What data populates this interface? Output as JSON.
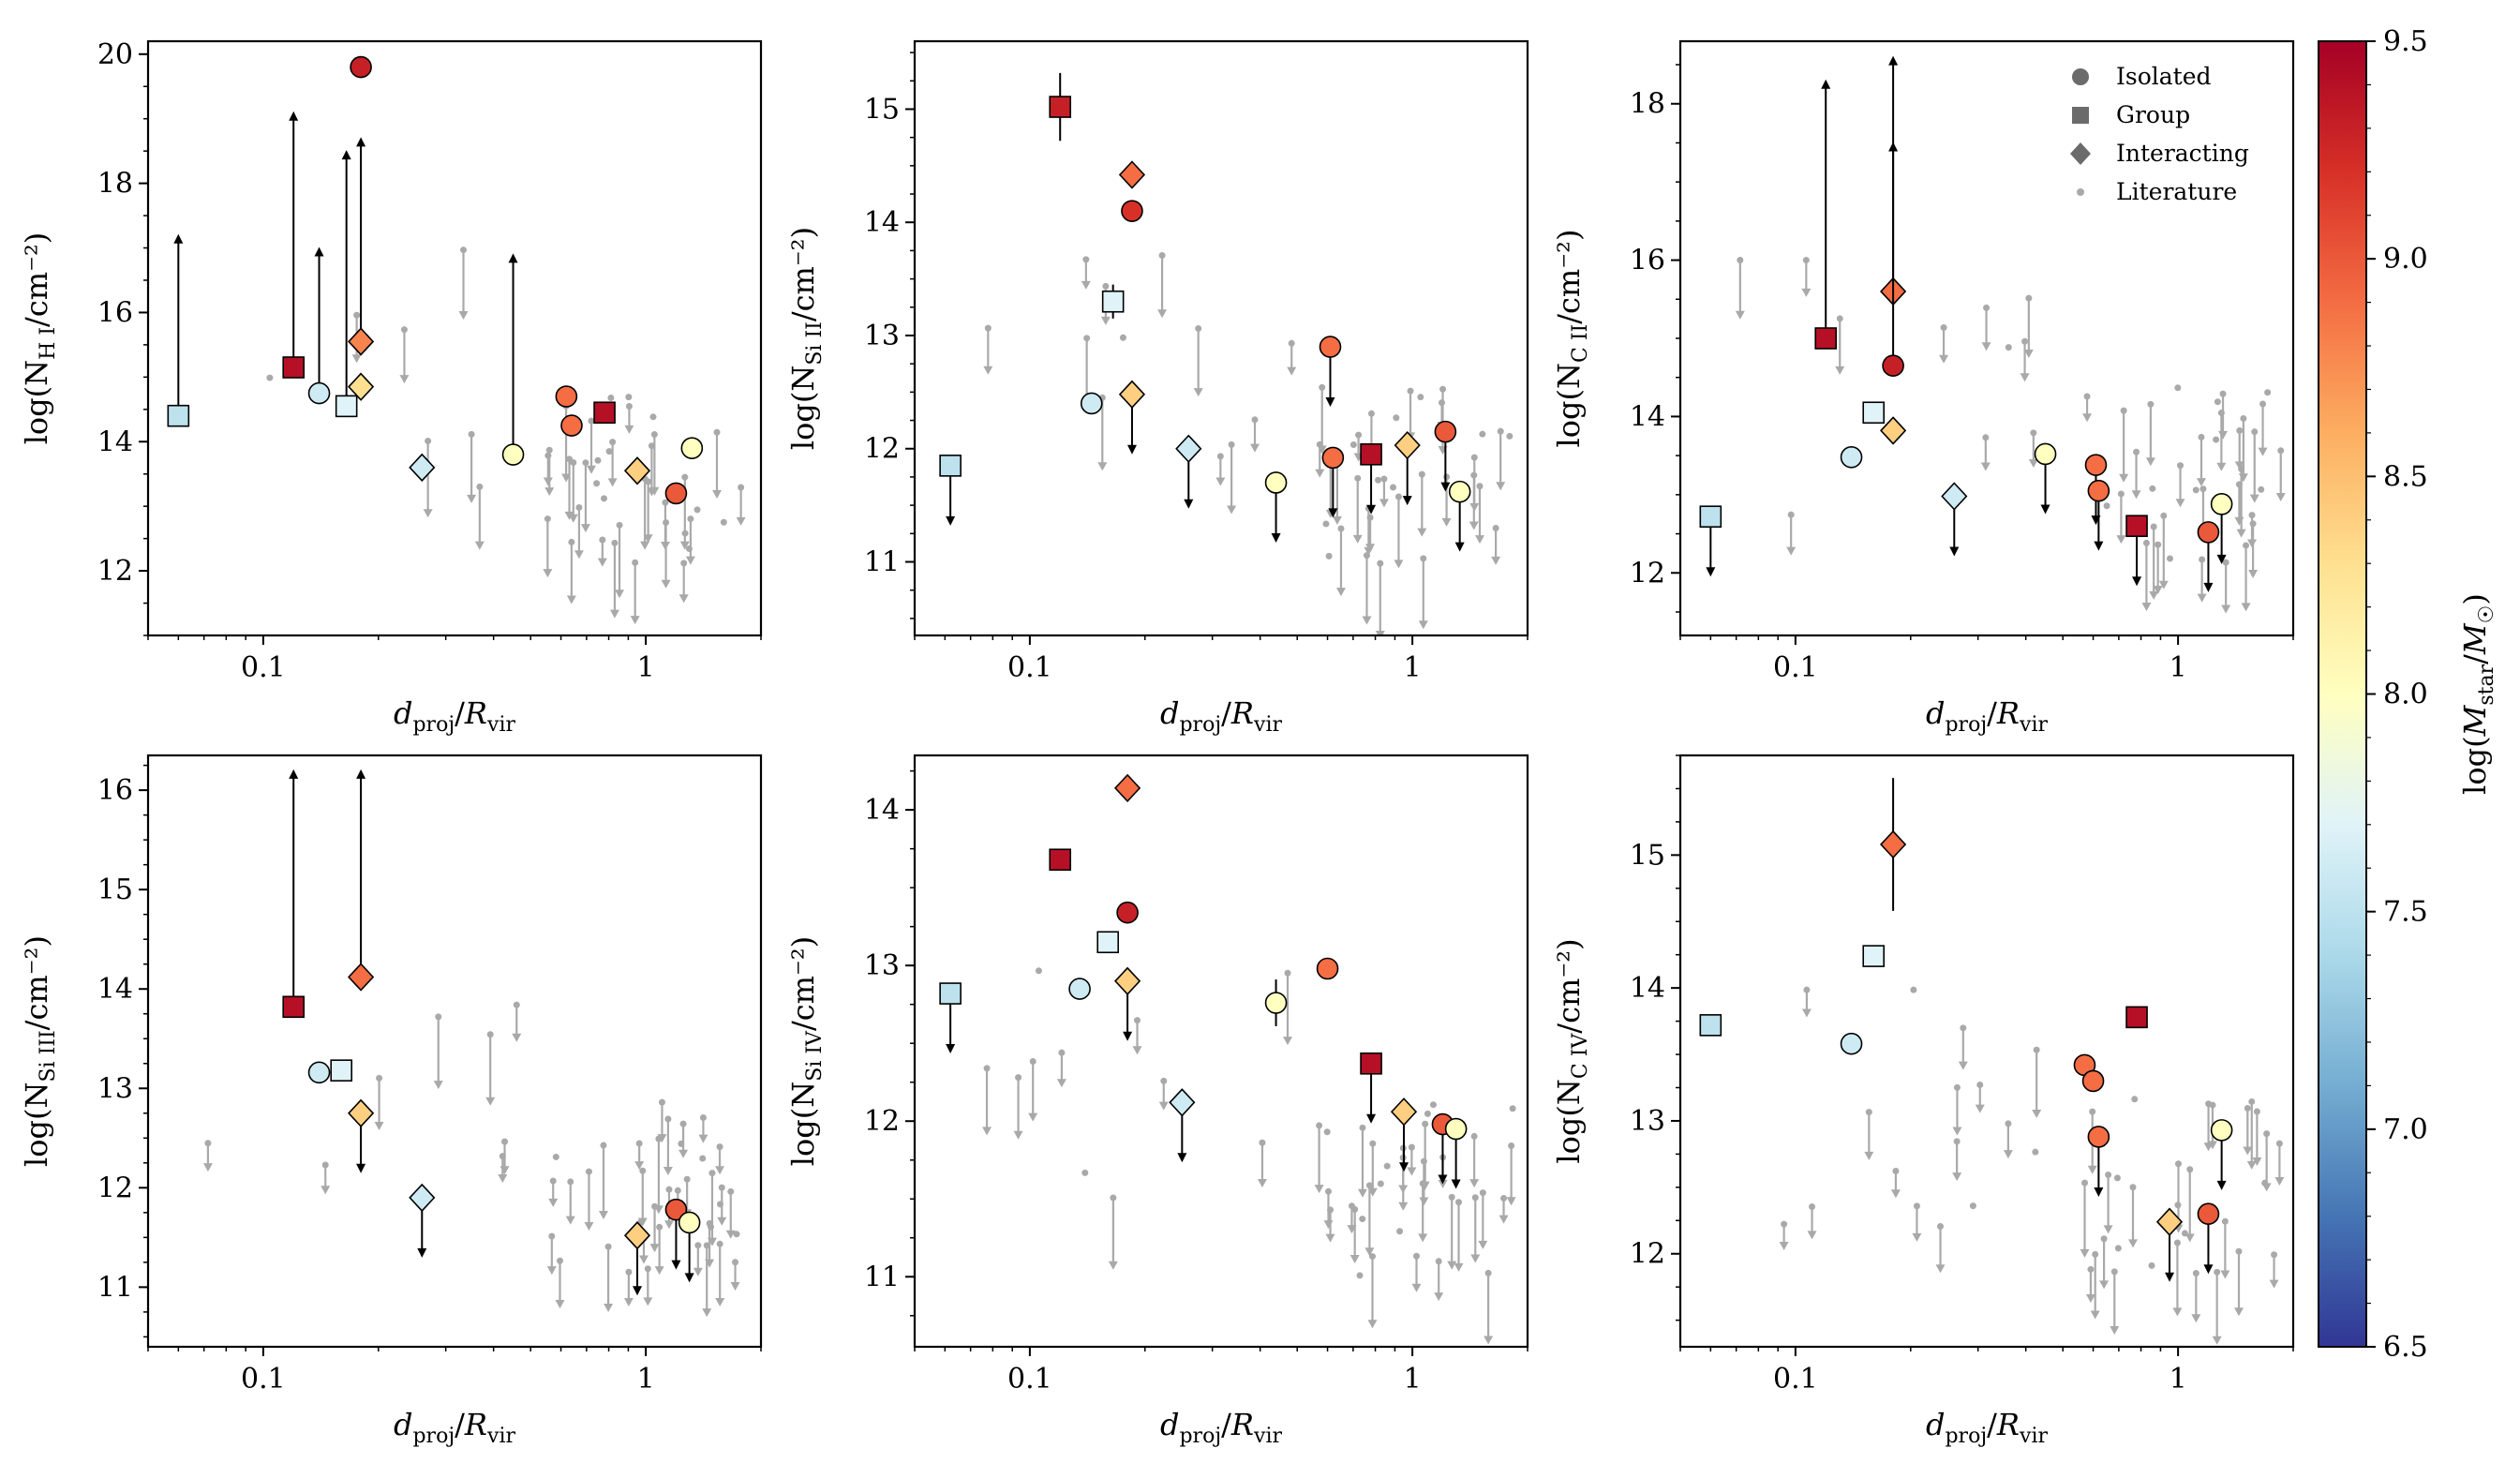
{
  "chart_data": {
    "type": "scatter",
    "xlabel": "d_proj/R_vir",
    "legend": {
      "placement": "top-right",
      "entries": [
        {
          "label": "Isolated",
          "marker": "circle-icon"
        },
        {
          "label": "Group",
          "marker": "square-icon"
        },
        {
          "label": "Interacting",
          "marker": "diamond-icon"
        },
        {
          "label": "Literature",
          "marker": "small-dot-icon"
        }
      ]
    },
    "colorbar": {
      "label": "log(M_star/M_☉)",
      "range": [
        6.5,
        9.5
      ],
      "ticks": [
        "6.5",
        "7.0",
        "7.5",
        "8.0",
        "8.5",
        "9.0",
        "9.5"
      ],
      "colormap": [
        "#313695",
        "#4575b4",
        "#74add1",
        "#abd9e9",
        "#e0f3f8",
        "#ffffbf",
        "#fee090",
        "#fdae61",
        "#f46d43",
        "#d73027",
        "#a50026"
      ]
    },
    "panels": [
      {
        "ion": "HI",
        "ylabel_pre": "log(N",
        "ylabel_sub": "H I",
        "ylabel_post": "/cm⁻²)",
        "ylim": [
          11.0,
          20.2
        ],
        "yticks": [
          12,
          14,
          16,
          18,
          20
        ],
        "xlim": [
          0.05,
          2.0
        ],
        "points": [
          {
            "x": 0.06,
            "y": 14.4,
            "m": "s",
            "c": 7.5,
            "lim": "lower",
            "top": 17.2
          },
          {
            "x": 0.12,
            "y": 15.15,
            "m": "s",
            "c": 9.4,
            "lim": "lower",
            "top": 19.1
          },
          {
            "x": 0.14,
            "y": 14.75,
            "m": "o",
            "c": 7.6,
            "lim": "lower",
            "top": 17.0
          },
          {
            "x": 0.165,
            "y": 14.55,
            "m": "s",
            "c": 7.7,
            "lim": "lower",
            "top": 18.5
          },
          {
            "x": 0.18,
            "y": 19.8,
            "m": "o",
            "c": 9.3
          },
          {
            "x": 0.18,
            "y": 15.55,
            "m": "d",
            "c": 8.8,
            "lim": "lower",
            "top": 18.7
          },
          {
            "x": 0.18,
            "y": 14.85,
            "m": "d",
            "c": 8.3
          },
          {
            "x": 0.26,
            "y": 13.6,
            "m": "d",
            "c": 7.6
          },
          {
            "x": 0.45,
            "y": 13.8,
            "m": "o",
            "c": 8.0,
            "lim": "lower",
            "top": 16.9
          },
          {
            "x": 0.62,
            "y": 14.7,
            "m": "o",
            "c": 8.9
          },
          {
            "x": 0.64,
            "y": 14.25,
            "m": "o",
            "c": 8.9
          },
          {
            "x": 0.78,
            "y": 14.45,
            "m": "s",
            "c": 9.4
          },
          {
            "x": 0.95,
            "y": 13.55,
            "m": "d",
            "c": 8.4
          },
          {
            "x": 1.2,
            "y": 13.2,
            "m": "o",
            "c": 9.0
          },
          {
            "x": 1.32,
            "y": 13.9,
            "m": "o",
            "c": 8.0
          }
        ]
      },
      {
        "ion": "SiII",
        "ylabel_pre": "log(N",
        "ylabel_sub": "Si II",
        "ylabel_post": "/cm⁻²)",
        "ylim": [
          10.35,
          15.6
        ],
        "yticks": [
          11,
          12,
          13,
          14,
          15
        ],
        "xlim": [
          0.05,
          2.0
        ],
        "points": [
          {
            "x": 0.062,
            "y": 11.85,
            "m": "s",
            "c": 7.5,
            "lim": "upper"
          },
          {
            "x": 0.12,
            "y": 15.02,
            "m": "s",
            "c": 9.3,
            "err": 0.3
          },
          {
            "x": 0.145,
            "y": 12.4,
            "m": "o",
            "c": 7.6
          },
          {
            "x": 0.165,
            "y": 13.3,
            "m": "s",
            "c": 7.7,
            "err": 0.15
          },
          {
            "x": 0.185,
            "y": 14.42,
            "m": "d",
            "c": 8.9
          },
          {
            "x": 0.185,
            "y": 14.1,
            "m": "o",
            "c": 9.2
          },
          {
            "x": 0.185,
            "y": 12.48,
            "m": "d",
            "c": 8.4,
            "lim": "upper"
          },
          {
            "x": 0.26,
            "y": 12.0,
            "m": "d",
            "c": 7.6,
            "lim": "upper"
          },
          {
            "x": 0.44,
            "y": 11.7,
            "m": "o",
            "c": 8.0,
            "lim": "upper"
          },
          {
            "x": 0.61,
            "y": 12.9,
            "m": "o",
            "c": 8.9,
            "lim": "upper"
          },
          {
            "x": 0.62,
            "y": 11.92,
            "m": "o",
            "c": 8.9,
            "lim": "upper"
          },
          {
            "x": 0.78,
            "y": 11.95,
            "m": "s",
            "c": 9.4,
            "lim": "upper"
          },
          {
            "x": 0.97,
            "y": 12.03,
            "m": "d",
            "c": 8.4,
            "lim": "upper"
          },
          {
            "x": 1.22,
            "y": 12.15,
            "m": "o",
            "c": 9.0,
            "lim": "upper"
          },
          {
            "x": 1.33,
            "y": 11.62,
            "m": "o",
            "c": 8.0,
            "lim": "upper"
          }
        ]
      },
      {
        "ion": "CII",
        "ylabel_pre": "log(N",
        "ylabel_sub": "C II",
        "ylabel_post": "/cm⁻²)",
        "ylim": [
          11.2,
          18.8
        ],
        "yticks": [
          12,
          14,
          16,
          18
        ],
        "xlim": [
          0.05,
          2.0
        ],
        "points": [
          {
            "x": 0.06,
            "y": 12.72,
            "m": "s",
            "c": 7.5,
            "lim": "upper"
          },
          {
            "x": 0.12,
            "y": 15.0,
            "m": "s",
            "c": 9.4,
            "lim": "lower",
            "top": 18.3
          },
          {
            "x": 0.14,
            "y": 13.48,
            "m": "o",
            "c": 7.6
          },
          {
            "x": 0.16,
            "y": 14.05,
            "m": "s",
            "c": 7.7
          },
          {
            "x": 0.18,
            "y": 15.6,
            "m": "d",
            "c": 8.9,
            "lim": "lower",
            "top": 18.6
          },
          {
            "x": 0.18,
            "y": 14.65,
            "m": "o",
            "c": 9.3,
            "lim": "lower",
            "top": 17.5
          },
          {
            "x": 0.18,
            "y": 13.82,
            "m": "d",
            "c": 8.4
          },
          {
            "x": 0.26,
            "y": 12.98,
            "m": "d",
            "c": 7.6,
            "lim": "upper"
          },
          {
            "x": 0.45,
            "y": 13.52,
            "m": "o",
            "c": 8.0,
            "lim": "upper"
          },
          {
            "x": 0.61,
            "y": 13.38,
            "m": "o",
            "c": 8.9,
            "lim": "upper"
          },
          {
            "x": 0.62,
            "y": 13.05,
            "m": "o",
            "c": 8.9,
            "lim": "upper"
          },
          {
            "x": 0.78,
            "y": 12.6,
            "m": "s",
            "c": 9.4,
            "lim": "upper"
          },
          {
            "x": 1.2,
            "y": 12.52,
            "m": "o",
            "c": 9.0,
            "lim": "upper"
          },
          {
            "x": 1.3,
            "y": 12.88,
            "m": "o",
            "c": 8.0,
            "lim": "upper"
          }
        ]
      },
      {
        "ion": "SiIII",
        "ylabel_pre": "log(N",
        "ylabel_sub": "Si III",
        "ylabel_post": "/cm⁻²)",
        "ylim": [
          10.4,
          16.35
        ],
        "yticks": [
          11,
          12,
          13,
          14,
          15,
          16
        ],
        "xlim": [
          0.05,
          2.0
        ],
        "points": [
          {
            "x": 0.12,
            "y": 13.82,
            "m": "s",
            "c": 9.4,
            "lim": "lower",
            "top": 16.2
          },
          {
            "x": 0.14,
            "y": 13.16,
            "m": "o",
            "c": 7.6
          },
          {
            "x": 0.16,
            "y": 13.18,
            "m": "s",
            "c": 7.7
          },
          {
            "x": 0.18,
            "y": 14.12,
            "m": "d",
            "c": 8.9,
            "lim": "lower",
            "top": 16.2
          },
          {
            "x": 0.18,
            "y": 12.75,
            "m": "d",
            "c": 8.4,
            "lim": "upper"
          },
          {
            "x": 0.26,
            "y": 11.9,
            "m": "d",
            "c": 7.6,
            "lim": "upper"
          },
          {
            "x": 0.95,
            "y": 11.52,
            "m": "d",
            "c": 8.4,
            "lim": "upper"
          },
          {
            "x": 1.2,
            "y": 11.78,
            "m": "o",
            "c": 9.0,
            "lim": "upper"
          },
          {
            "x": 1.3,
            "y": 11.65,
            "m": "o",
            "c": 8.0,
            "lim": "upper"
          }
        ]
      },
      {
        "ion": "SiIV",
        "ylabel_pre": "log(N",
        "ylabel_sub": "Si IV",
        "ylabel_post": "/cm⁻²)",
        "ylim": [
          10.55,
          14.35
        ],
        "yticks": [
          11,
          12,
          13,
          14
        ],
        "xlim": [
          0.05,
          2.0
        ],
        "points": [
          {
            "x": 0.062,
            "y": 12.82,
            "m": "s",
            "c": 7.5,
            "lim": "upper"
          },
          {
            "x": 0.12,
            "y": 13.68,
            "m": "s",
            "c": 9.4
          },
          {
            "x": 0.135,
            "y": 12.85,
            "m": "o",
            "c": 7.6
          },
          {
            "x": 0.16,
            "y": 13.15,
            "m": "s",
            "c": 7.7
          },
          {
            "x": 0.18,
            "y": 14.14,
            "m": "d",
            "c": 8.9
          },
          {
            "x": 0.18,
            "y": 13.34,
            "m": "o",
            "c": 9.3
          },
          {
            "x": 0.18,
            "y": 12.9,
            "m": "d",
            "c": 8.4,
            "lim": "upper"
          },
          {
            "x": 0.25,
            "y": 12.12,
            "m": "d",
            "c": 7.6,
            "lim": "upper"
          },
          {
            "x": 0.44,
            "y": 12.76,
            "m": "o",
            "c": 8.0,
            "err": 0.15
          },
          {
            "x": 0.6,
            "y": 12.98,
            "m": "o",
            "c": 8.9
          },
          {
            "x": 0.78,
            "y": 12.37,
            "m": "s",
            "c": 9.4,
            "lim": "upper"
          },
          {
            "x": 0.95,
            "y": 12.06,
            "m": "d",
            "c": 8.4,
            "lim": "upper"
          },
          {
            "x": 1.2,
            "y": 11.98,
            "m": "o",
            "c": 9.0,
            "lim": "upper"
          },
          {
            "x": 1.3,
            "y": 11.95,
            "m": "o",
            "c": 8.0,
            "lim": "upper"
          }
        ]
      },
      {
        "ion": "CIV",
        "ylabel_pre": "log(N",
        "ylabel_sub": "C IV",
        "ylabel_post": "/cm⁻²)",
        "ylim": [
          11.3,
          15.75
        ],
        "yticks": [
          12,
          13,
          14,
          15
        ],
        "xlim": [
          0.05,
          2.0
        ],
        "points": [
          {
            "x": 0.06,
            "y": 13.72,
            "m": "s",
            "c": 7.5
          },
          {
            "x": 0.14,
            "y": 13.58,
            "m": "o",
            "c": 7.6
          },
          {
            "x": 0.16,
            "y": 14.24,
            "m": "s",
            "c": 7.7
          },
          {
            "x": 0.18,
            "y": 15.08,
            "m": "d",
            "c": 8.9,
            "err": 0.5
          },
          {
            "x": 0.57,
            "y": 13.42,
            "m": "o",
            "c": 8.9
          },
          {
            "x": 0.6,
            "y": 13.3,
            "m": "o",
            "c": 8.9
          },
          {
            "x": 0.62,
            "y": 12.88,
            "m": "o",
            "c": 8.9,
            "lim": "upper"
          },
          {
            "x": 0.78,
            "y": 13.78,
            "m": "s",
            "c": 9.4
          },
          {
            "x": 0.95,
            "y": 12.24,
            "m": "d",
            "c": 8.4,
            "lim": "upper"
          },
          {
            "x": 1.2,
            "y": 12.3,
            "m": "o",
            "c": 9.0,
            "lim": "upper"
          },
          {
            "x": 1.3,
            "y": 12.93,
            "m": "o",
            "c": 8.0,
            "lim": "upper"
          }
        ]
      }
    ]
  }
}
